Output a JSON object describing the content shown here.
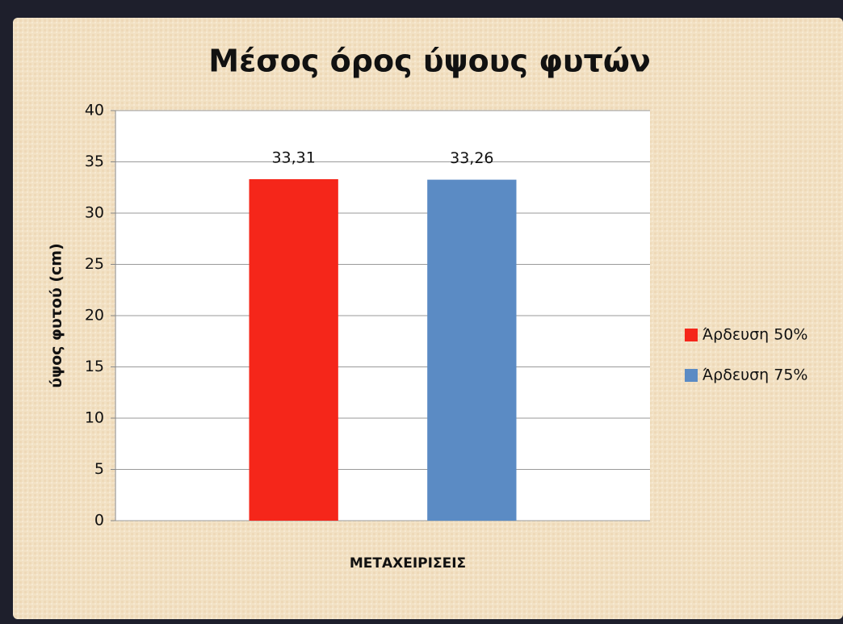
{
  "chart_data": {
    "type": "bar",
    "title": "Μέσος όρος ύψους φυτών",
    "y_label": "ύψος φυτού (cm)",
    "x_label": "ΜΕΤΑΧΕΙΡΙΣΕΙΣ",
    "categories": [
      null
    ],
    "series": [
      {
        "name": "Άρδευση 50%",
        "color": "#f5261a",
        "values": [
          33.31
        ],
        "value_labels": [
          "33,31"
        ]
      },
      {
        "name": "Άρδευση 75%",
        "color": "#5b8bc4",
        "values": [
          33.26
        ],
        "value_labels": [
          "33,26"
        ]
      }
    ],
    "ylim": [
      0,
      40
    ],
    "yticks": [
      0,
      5,
      10,
      15,
      20,
      25,
      30,
      35,
      40
    ],
    "grid": true,
    "legend": "right"
  }
}
